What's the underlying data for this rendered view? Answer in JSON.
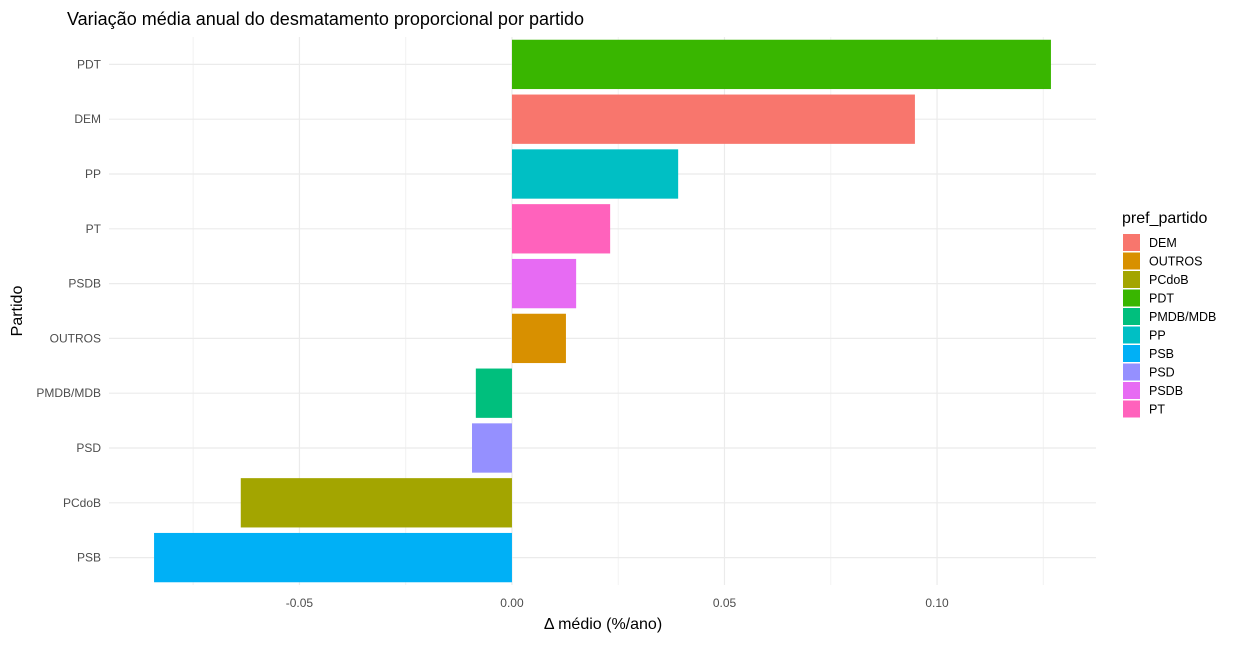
{
  "chart_data": {
    "type": "bar",
    "orientation": "horizontal",
    "title": "Variação média anual do desmatamento proporcional por partido",
    "xlabel": "Δ médio (%/ano)",
    "ylabel": "Partido",
    "xlim": [
      -0.0948,
      0.1374
    ],
    "xticks": [
      -0.05,
      0.0,
      0.05,
      0.1
    ],
    "xtick_labels": [
      "-0.05",
      "0.00",
      "0.05",
      "0.10"
    ],
    "grid": true,
    "categories": [
      "PDT",
      "DEM",
      "PP",
      "PT",
      "PSDB",
      "OUTROS",
      "PMDB/MDB",
      "PSD",
      "PCdoB",
      "PSB"
    ],
    "values": [
      0.1268,
      0.0948,
      0.0391,
      0.0231,
      0.0151,
      0.0127,
      -0.0085,
      -0.0094,
      -0.0638,
      -0.0842
    ],
    "legend": {
      "title": "pref_partido",
      "placement": "right",
      "entries": [
        {
          "label": "DEM",
          "color": "#F8766D"
        },
        {
          "label": "OUTROS",
          "color": "#D89000"
        },
        {
          "label": "PCdoB",
          "color": "#A3A500"
        },
        {
          "label": "PDT",
          "color": "#39B600"
        },
        {
          "label": "PMDB/MDB",
          "color": "#00BF7D"
        },
        {
          "label": "PP",
          "color": "#00BFC4"
        },
        {
          "label": "PSB",
          "color": "#00B0F6"
        },
        {
          "label": "PSD",
          "color": "#9590FF"
        },
        {
          "label": "PSDB",
          "color": "#E76BF3"
        },
        {
          "label": "PT",
          "color": "#FF62BC"
        }
      ]
    }
  }
}
